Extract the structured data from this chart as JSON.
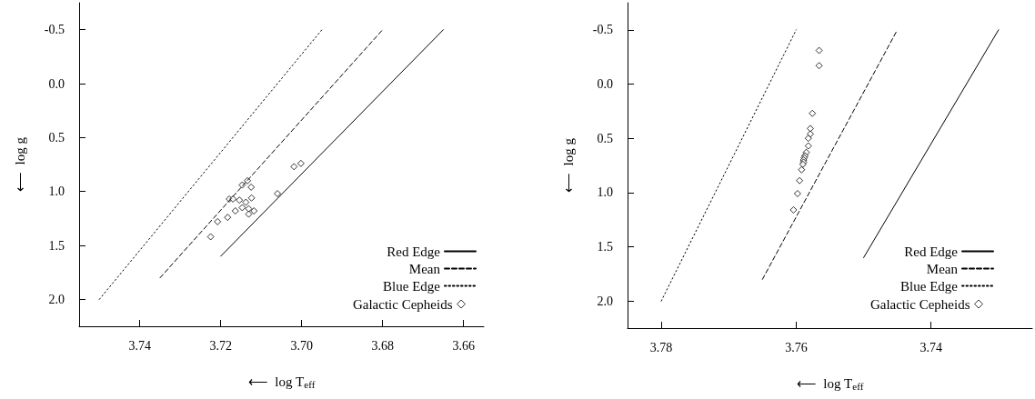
{
  "chart_data": [
    {
      "type": "scatter",
      "xlabel": "⟵  log T$_{eff}$",
      "ylabel": "⟵  log g",
      "xlim": [
        3.755,
        3.655
      ],
      "ylim": [
        2.25,
        -0.75
      ],
      "xticks": [
        3.74,
        3.72,
        {
          "value": 3.7,
          "label": "3.70"
        },
        3.68,
        3.66
      ],
      "yticks": [
        -0.5,
        {
          "value": 0,
          "label": "0.0"
        },
        0.5,
        {
          "value": 1,
          "label": "1.0"
        },
        1.5,
        {
          "value": 2,
          "label": "2.0"
        }
      ],
      "grid": false,
      "legend": "bottom right",
      "series": [
        {
          "name": "Red Edge",
          "type": "line",
          "line_style": "solid",
          "marker": "none",
          "color": "#000000",
          "x": [
            3.72,
            3.665
          ],
          "values": [
            1.6,
            -0.5
          ]
        },
        {
          "name": "Mean",
          "type": "line",
          "line_style": "dashed",
          "marker": "none",
          "color": "#000000",
          "x": [
            3.735,
            3.68
          ],
          "values": [
            1.8,
            -0.5
          ]
        },
        {
          "name": "Blue Edge",
          "type": "line",
          "line_style": "dotted",
          "marker": "none",
          "color": "#000000",
          "x": [
            3.75,
            3.695
          ],
          "values": [
            2.0,
            -0.5
          ]
        },
        {
          "name": "Galactic Cepheids",
          "marker": "diamond",
          "color": "#000000",
          "x": [
            3.7225,
            3.7208,
            3.7183,
            3.7179,
            3.717,
            3.7164,
            3.7154,
            3.7147,
            3.7147,
            3.7138,
            3.7134,
            3.7131,
            3.7131,
            3.7124,
            3.7125,
            3.7118,
            3.706,
            3.7019,
            3.7002
          ],
          "values": [
            1.42,
            1.28,
            1.24,
            1.07,
            1.07,
            1.18,
            1.08,
            1.15,
            0.94,
            1.1,
            0.9,
            1.16,
            1.21,
            1.06,
            0.96,
            1.18,
            1.02,
            0.77,
            0.74
          ]
        }
      ]
    },
    {
      "type": "scatter",
      "xlabel": "⟵  log T$_{eff}$",
      "ylabel": "⟵  log g",
      "xlim": [
        3.785,
        3.725
      ],
      "ylim": [
        2.25,
        -0.75
      ],
      "xticks": [
        3.78,
        3.76,
        3.74
      ],
      "yticks": [
        -0.5,
        {
          "value": 0,
          "label": "0.0"
        },
        0.5,
        {
          "value": 1,
          "label": "1.0"
        },
        1.5,
        {
          "value": 2,
          "label": "2.0"
        }
      ],
      "grid": false,
      "legend": "bottom right",
      "series": [
        {
          "name": "Red Edge",
          "type": "line",
          "line_style": "solid",
          "marker": "none",
          "color": "#000000",
          "x": [
            3.75,
            3.73
          ],
          "values": [
            1.6,
            -0.5
          ]
        },
        {
          "name": "Mean",
          "type": "line",
          "line_style": "dashed",
          "marker": "none",
          "color": "#000000",
          "x": [
            3.765,
            3.745
          ],
          "values": [
            1.8,
            -0.5
          ]
        },
        {
          "name": "Blue Edge",
          "type": "line",
          "line_style": "dotted",
          "marker": "none",
          "color": "#000000",
          "x": [
            3.78,
            3.76
          ],
          "values": [
            2.0,
            -0.5
          ]
        },
        {
          "name": "Galactic Cepheids",
          "marker": "diamond",
          "color": "#000000",
          "x": [
            3.7566,
            3.7566,
            3.7576,
            3.7579,
            3.7579,
            3.7582,
            3.7582,
            3.7585,
            3.7587,
            3.7588,
            3.7589,
            3.7589,
            3.759,
            3.7592,
            3.7595,
            3.7598,
            3.7604
          ],
          "values": [
            -0.31,
            -0.17,
            0.27,
            0.41,
            0.46,
            0.5,
            0.57,
            0.63,
            0.66,
            0.68,
            0.7,
            0.72,
            0.74,
            0.79,
            0.89,
            1.01,
            1.16
          ]
        }
      ]
    }
  ]
}
